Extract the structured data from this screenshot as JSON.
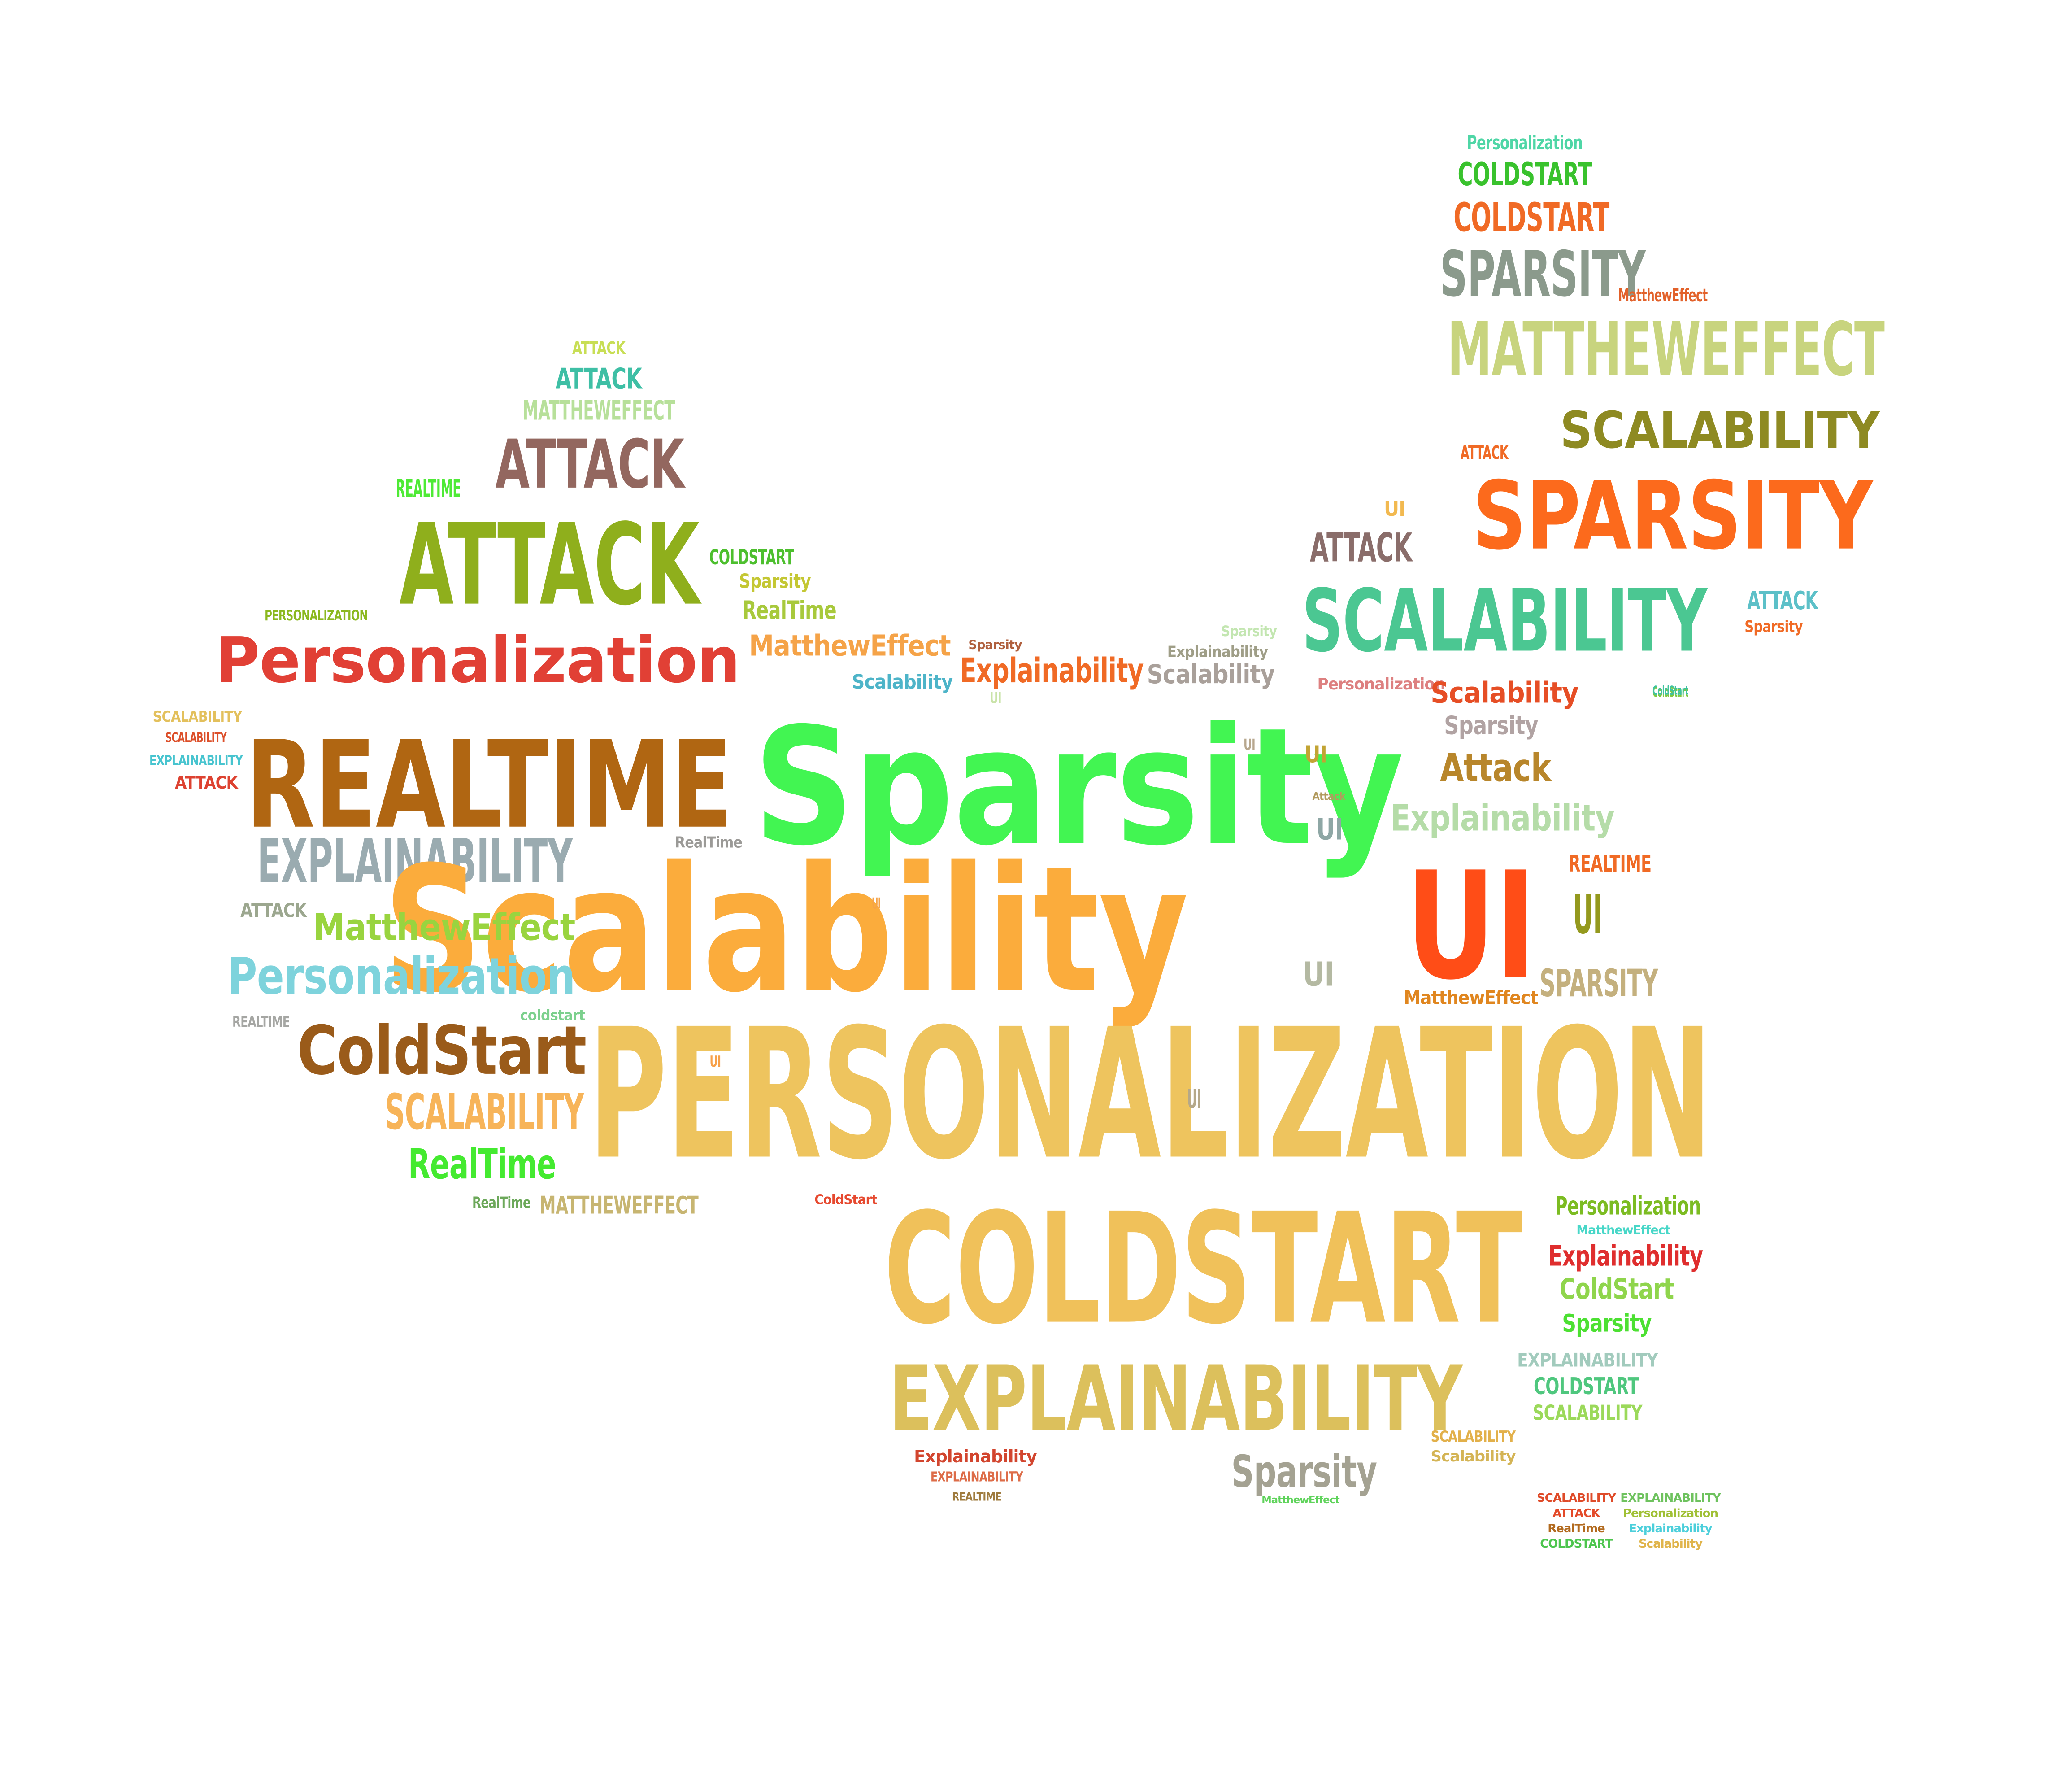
{
  "word_cloud": {
    "words": [
      {
        "text": "Personalization",
        "color": "#4fd6a6"
      },
      {
        "text": "COLDSTART",
        "color": "#39c22d"
      },
      {
        "text": "COLDSTART",
        "color": "#f06a25"
      },
      {
        "text": "SPARSITY",
        "color": "#8b9a8c"
      },
      {
        "text": "MatthewEffect",
        "color": "#e2612a"
      },
      {
        "text": "MATTHEWEFFECT",
        "color": "#c8d47e"
      },
      {
        "text": "SCALABILITY",
        "color": "#8e8a22"
      },
      {
        "text": "ATTACK",
        "color": "#f06a25"
      },
      {
        "text": "SPARSITY",
        "color": "#fc6a1c"
      },
      {
        "text": "UI",
        "color": "#f2b950"
      },
      {
        "text": "ATTACK",
        "color": "#8a6d6a"
      },
      {
        "text": "SCALABILITY",
        "color": "#4bc792"
      },
      {
        "text": "ATTACK",
        "color": "#5cc0c8"
      },
      {
        "text": "Sparsity",
        "color": "#f06a25"
      },
      {
        "text": "ColdStart",
        "color": "#7fc93f"
      },
      {
        "text": "ATTACK",
        "color": "#c8de55"
      },
      {
        "text": "ATTACK",
        "color": "#3ebfa5"
      },
      {
        "text": "MATTHEWEFFECT",
        "color": "#b7e09a"
      },
      {
        "text": "ATTACK",
        "color": "#93675f"
      },
      {
        "text": "REALTIME",
        "color": "#4eea35"
      },
      {
        "text": "ATTACK",
        "color": "#8faf1c"
      },
      {
        "text": "COLDSTART",
        "color": "#4dbf2e"
      },
      {
        "text": "Sparsity",
        "color": "#c4c733"
      },
      {
        "text": "RealTime",
        "color": "#a8c93c"
      },
      {
        "text": "PERSONALIZATION",
        "color": "#8bb81f"
      },
      {
        "text": "Personalization",
        "color": "#e14035"
      },
      {
        "text": "MatthewEffect",
        "color": "#f5a348"
      },
      {
        "text": "Sparsity",
        "color": "#b0603e"
      },
      {
        "text": "Explainability",
        "color": "#9f9e87"
      },
      {
        "text": "Sparsity",
        "color": "#c3e6b1"
      },
      {
        "text": "Explainability",
        "color": "#f06a25"
      },
      {
        "text": "Scalability",
        "color": "#a9a09a"
      },
      {
        "text": "Scalability",
        "color": "#4db4c8"
      },
      {
        "text": "Personalization",
        "color": "#dd8080"
      },
      {
        "text": "Scalability",
        "color": "#e64e25"
      },
      {
        "text": "ColdStart",
        "color": "#3ec2a0"
      },
      {
        "text": "SCALABILITY",
        "color": "#e3c05c"
      },
      {
        "text": "REALTIME",
        "color": "#b06612"
      },
      {
        "text": "Sparsity",
        "color": "#42f552"
      },
      {
        "text": "Sparsity",
        "color": "#b1a3a3"
      },
      {
        "text": "UI",
        "color": "#c9e3a8"
      },
      {
        "text": "SCALABILITY",
        "color": "#dc4f2a"
      },
      {
        "text": "EXPLAINABILITY",
        "color": "#47c4cf"
      },
      {
        "text": "ATTACK",
        "color": "#dd4231"
      },
      {
        "text": "UI",
        "color": "#b7a78e"
      },
      {
        "text": "UI",
        "color": "#c2a434"
      },
      {
        "text": "Attack",
        "color": "#b8862b"
      },
      {
        "text": "Attack",
        "color": "#b29b5e"
      },
      {
        "text": "UI",
        "color": "#8ea7a5"
      },
      {
        "text": "Explainability",
        "color": "#b5dca8"
      },
      {
        "text": "EXPLAINABILITY",
        "color": "#9aabb0"
      },
      {
        "text": "RealTime",
        "color": "#9b9a97"
      },
      {
        "text": "Scalability",
        "color": "#fbac3c"
      },
      {
        "text": "UI",
        "color": "#ff4d17"
      },
      {
        "text": "REALTIME",
        "color": "#f06a25"
      },
      {
        "text": "UI",
        "color": "#94991e"
      },
      {
        "text": "ATTACK",
        "color": "#9ca78f"
      },
      {
        "text": "MatthewEffect",
        "color": "#99d43f"
      },
      {
        "text": "UI",
        "color": "#f5a348"
      },
      {
        "text": "Personalization",
        "color": "#7ed3dc"
      },
      {
        "text": "UI",
        "color": "#b4b9a2"
      },
      {
        "text": "SPARSITY",
        "color": "#c4b07e"
      },
      {
        "text": "REALTIME",
        "color": "#a5a6a3"
      },
      {
        "text": "coldstart",
        "color": "#7cd08d"
      },
      {
        "text": "MatthewEffect",
        "color": "#e0861f"
      },
      {
        "text": "ColdStart",
        "color": "#9a5b1a"
      },
      {
        "text": "UI",
        "color": "#f7a049"
      },
      {
        "text": "PERSONALIZATION",
        "color": "#eec45e"
      },
      {
        "text": "SCALABILITY",
        "color": "#f7b459"
      },
      {
        "text": "UI",
        "color": "#b5a889"
      },
      {
        "text": "RealTime",
        "color": "#44ea30"
      },
      {
        "text": "RealTime",
        "color": "#6ca85a"
      },
      {
        "text": "MATTHEWEFFECT",
        "color": "#c7b571"
      },
      {
        "text": "ColdStart",
        "color": "#e6492f"
      },
      {
        "text": "Personalization",
        "color": "#7cbc22"
      },
      {
        "text": "MatthewEffect",
        "color": "#48d7c8"
      },
      {
        "text": "COLDSTART",
        "color": "#f0c15a"
      },
      {
        "text": "Explainability",
        "color": "#df2e2e"
      },
      {
        "text": "ColdStart",
        "color": "#8fd54c"
      },
      {
        "text": "Sparsity",
        "color": "#4ce032"
      },
      {
        "text": "EXPLAINABILITY",
        "color": "#dcc05c"
      },
      {
        "text": "EXPLAINABILITY",
        "color": "#a2cbbd"
      },
      {
        "text": "COLDSTART",
        "color": "#4fc77e"
      },
      {
        "text": "SCALABILITY",
        "color": "#9bd95a"
      },
      {
        "text": "Explainability",
        "color": "#d2452e"
      },
      {
        "text": "Sparsity",
        "color": "#a4a292"
      },
      {
        "text": "Scalability",
        "color": "#d4b455"
      },
      {
        "text": "EXPLAINABILITY",
        "color": "#dd6c48"
      },
      {
        "text": "REALTIME",
        "color": "#9f7b3e"
      },
      {
        "text": "MatthewEffect",
        "color": "#5fd35b"
      },
      {
        "text": "SCALABILITY",
        "color": "#e2b04a"
      },
      {
        "text": "SCALABILITY",
        "color": "#df4b29"
      },
      {
        "text": "EXPLAINABILITY",
        "color": "#6ec25e"
      },
      {
        "text": "ATTACK",
        "color": "#e34a29"
      },
      {
        "text": "Personalization",
        "color": "#a0c035"
      },
      {
        "text": "RealTime",
        "color": "#b26a1e"
      },
      {
        "text": "Explainability",
        "color": "#4ccfdb"
      },
      {
        "text": "COLDSTART",
        "color": "#4dc54e"
      },
      {
        "text": "Scalability",
        "color": "#e0b44a"
      }
    ]
  }
}
